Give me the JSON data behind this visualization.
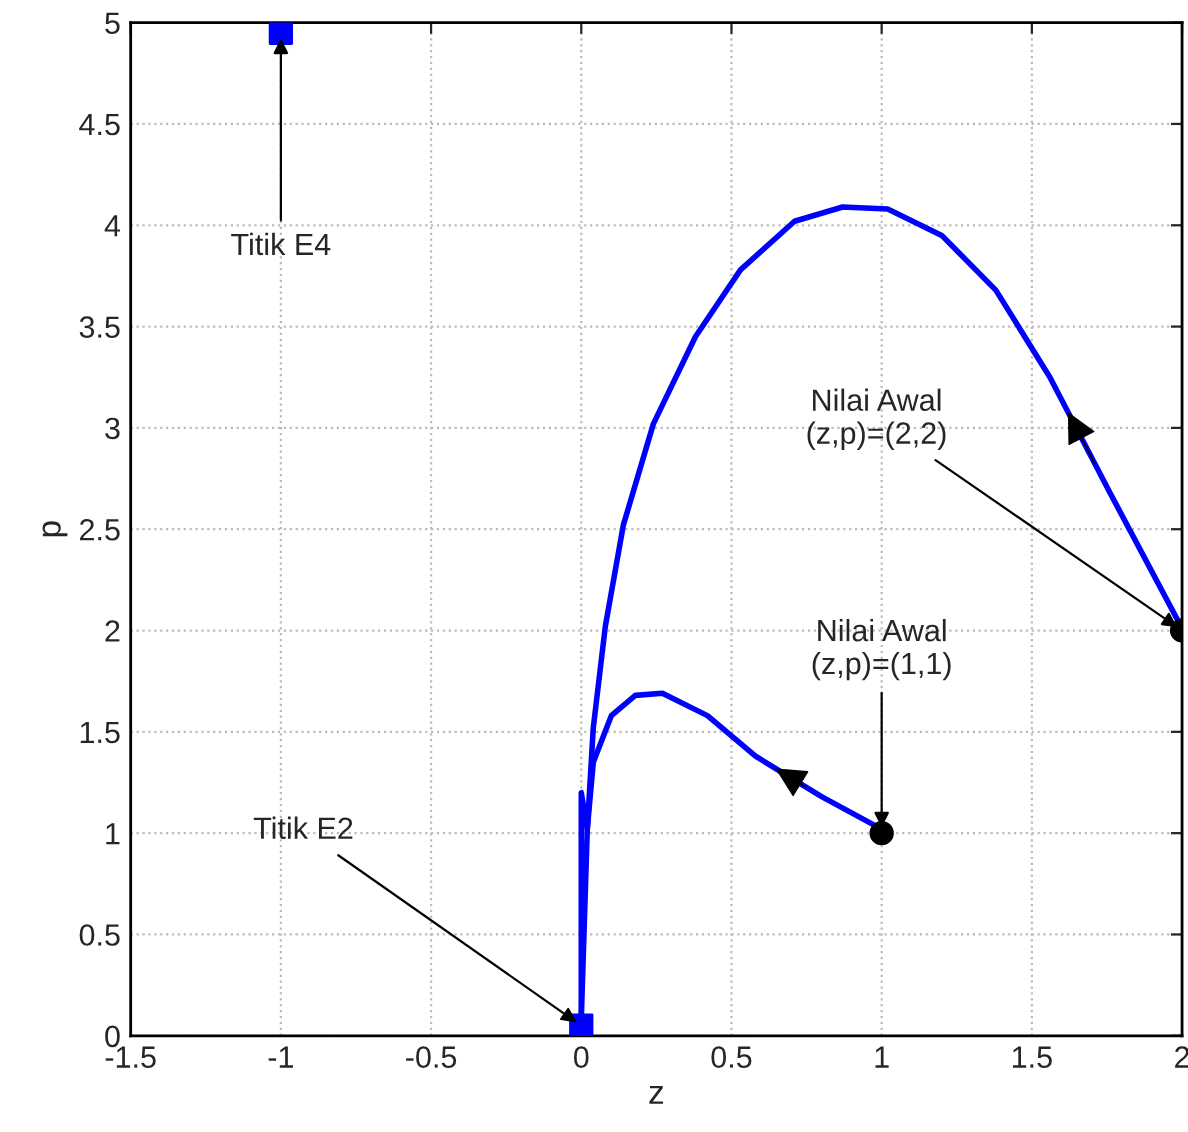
{
  "chart_data": {
    "type": "line",
    "xlabel": "z",
    "ylabel": "p",
    "xlim": [
      -1.5,
      2
    ],
    "xticks": [
      -1.5,
      -1,
      -0.5,
      0,
      0.5,
      1,
      1.5,
      2
    ],
    "ylim": [
      0,
      5
    ],
    "yticks": [
      0,
      0.5,
      1,
      1.5,
      2,
      2.5,
      3,
      3.5,
      4,
      4.5,
      5
    ],
    "grid": true,
    "legend": false,
    "line_style": "solid",
    "series": [
      {
        "color": "#0000ff",
        "x": [
          2,
          1.76,
          1.56,
          1.38,
          1.2,
          1.02,
          0.87,
          0.71,
          0.53,
          0.38,
          0.24,
          0.14,
          0.08,
          0.04,
          0.02,
          0,
          0
        ],
        "values": [
          2.01,
          2.68,
          3.25,
          3.68,
          3.95,
          4.08,
          4.09,
          4.02,
          3.78,
          3.45,
          3.02,
          2.52,
          2.02,
          1.52,
          1.02,
          1.2,
          0.08
        ]
      },
      {
        "color": "#0000ff",
        "x": [
          1,
          0.8,
          0.58,
          0.42,
          0.27,
          0.18,
          0.1,
          0.04,
          0.02,
          0
        ],
        "values": [
          1.02,
          1.18,
          1.38,
          1.58,
          1.69,
          1.68,
          1.58,
          1.35,
          1.02,
          0.08
        ]
      },
      {
        "type": "scatter",
        "marker": "square",
        "color": "#0000ff",
        "x": [
          -1,
          0
        ],
        "values": [
          4.95,
          0.05
        ]
      },
      {
        "type": "scatter",
        "marker": "circle",
        "color": "#000000",
        "x": [
          1,
          2
        ],
        "values": [
          1,
          2
        ]
      }
    ],
    "annotations": [
      {
        "text": "Titik E4",
        "x": -1,
        "y": 4.95
      },
      {
        "text": "Titik E2",
        "x": 0,
        "y": 0.05
      },
      {
        "text": "Nilai Awal\n(z,p)=(2,2)",
        "x": 2,
        "y": 2
      },
      {
        "text": "Nilai Awal\n(z,p)=(1,1)",
        "x": 1,
        "y": 1
      }
    ]
  }
}
